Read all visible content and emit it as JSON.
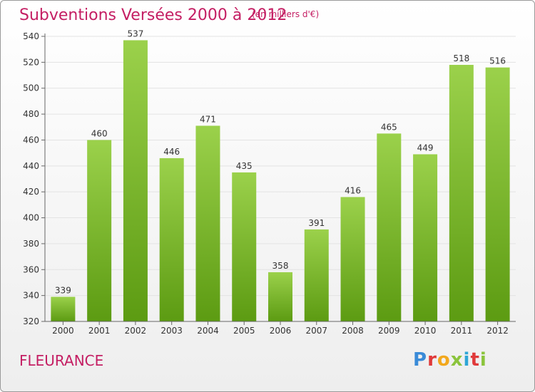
{
  "header": {
    "title": "Subventions Versées 2000 à 2012",
    "subtitle": "(en milliers d'€)"
  },
  "footer": {
    "commune": "FLEURANCE",
    "logo_text": "Proxiti"
  },
  "colors": {
    "title": "#c41e63",
    "bar_top": "#9bd14b",
    "bar_bottom": "#5c9b12",
    "grid": "#e3e3e3",
    "axis": "#666666",
    "logo": [
      "#3a8bd8",
      "#e03a3a",
      "#f2a81d",
      "#8bc43c",
      "#2fa6d6",
      "#e03a3a",
      "#8bc43c"
    ]
  },
  "chart_data": {
    "type": "bar",
    "categories": [
      "2000",
      "2001",
      "2002",
      "2003",
      "2004",
      "2005",
      "2006",
      "2007",
      "2008",
      "2009",
      "2010",
      "2011",
      "2012"
    ],
    "values": [
      339,
      460,
      537,
      446,
      471,
      435,
      358,
      391,
      416,
      465,
      449,
      518,
      516
    ],
    "title": "Subventions Versées 2000 à 2012",
    "ylim": [
      320,
      540
    ],
    "yticks": [
      320,
      340,
      360,
      380,
      400,
      420,
      440,
      460,
      480,
      500,
      520,
      540
    ],
    "grid": true,
    "data_labels": true
  }
}
